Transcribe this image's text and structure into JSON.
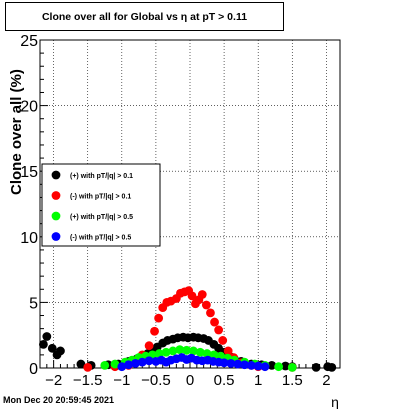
{
  "chart_data": {
    "type": "scatter",
    "title": "Clone  over all for Global vs   η at pT > 0.11",
    "xlabel": "η",
    "ylabel": "Clone  over all (%)",
    "xlim": [
      -2.2,
      2.2
    ],
    "ylim": [
      0,
      25
    ],
    "x_ticks": [
      -2,
      -1.5,
      -1,
      -0.5,
      0,
      0.5,
      1,
      1.5,
      2
    ],
    "x_tick_labels": [
      "−2",
      "−1.5",
      "−1",
      "−0.5",
      "0",
      "0.5",
      "1",
      "1.5",
      "2"
    ],
    "y_ticks": [
      0,
      5,
      10,
      15,
      20,
      25
    ],
    "y_tick_labels": [
      "0",
      "5",
      "10",
      "15",
      "20",
      "25"
    ],
    "grid": true,
    "legend_position": "left",
    "series": [
      {
        "name": "(+) with pT/|q| > 0.1",
        "color": "#000000",
        "points": [
          [
            -2.15,
            1.8
          ],
          [
            -2.1,
            2.4
          ],
          [
            -2.02,
            1.5
          ],
          [
            -1.95,
            1.0
          ],
          [
            -1.9,
            1.3
          ],
          [
            -1.6,
            0.3
          ],
          [
            -1.45,
            0.2
          ],
          [
            -1.2,
            0.25
          ],
          [
            -1.05,
            0.3
          ],
          [
            -0.9,
            0.5
          ],
          [
            -0.78,
            0.7
          ],
          [
            -0.7,
            0.9
          ],
          [
            -0.62,
            1.1
          ],
          [
            -0.55,
            1.3
          ],
          [
            -0.48,
            1.6
          ],
          [
            -0.4,
            1.9
          ],
          [
            -0.33,
            2.1
          ],
          [
            -0.25,
            2.2
          ],
          [
            -0.18,
            2.3
          ],
          [
            -0.1,
            2.35
          ],
          [
            -0.03,
            2.3
          ],
          [
            0.05,
            2.35
          ],
          [
            0.12,
            2.3
          ],
          [
            0.2,
            2.25
          ],
          [
            0.27,
            2.1
          ],
          [
            0.35,
            1.8
          ],
          [
            0.42,
            1.5
          ],
          [
            0.5,
            1.2
          ],
          [
            0.58,
            0.9
          ],
          [
            0.65,
            0.7
          ],
          [
            0.75,
            0.5
          ],
          [
            0.9,
            0.3
          ],
          [
            1.05,
            0.25
          ],
          [
            1.2,
            0.2
          ],
          [
            1.4,
            0.15
          ],
          [
            1.5,
            0.1
          ],
          [
            1.85,
            0.05
          ],
          [
            2.02,
            0.1
          ],
          [
            2.08,
            0.05
          ]
        ]
      },
      {
        "name": "(-) with pT/|q| > 0.1",
        "color": "#ff0000",
        "points": [
          [
            -1.5,
            0.05
          ],
          [
            -1.1,
            0.1
          ],
          [
            -0.9,
            0.2
          ],
          [
            -0.8,
            0.5
          ],
          [
            -0.7,
            1.0
          ],
          [
            -0.6,
            1.7
          ],
          [
            -0.52,
            2.8
          ],
          [
            -0.46,
            3.8
          ],
          [
            -0.4,
            4.6
          ],
          [
            -0.34,
            5.0
          ],
          [
            -0.28,
            5.1
          ],
          [
            -0.2,
            5.3
          ],
          [
            -0.14,
            5.7
          ],
          [
            -0.08,
            5.8
          ],
          [
            -0.02,
            5.9
          ],
          [
            0.03,
            5.5
          ],
          [
            0.08,
            4.9
          ],
          [
            0.13,
            5.2
          ],
          [
            0.18,
            5.6
          ],
          [
            0.24,
            4.8
          ],
          [
            0.3,
            4.2
          ],
          [
            0.36,
            3.5
          ],
          [
            0.42,
            2.9
          ],
          [
            0.48,
            2.1
          ],
          [
            0.56,
            1.3
          ],
          [
            0.64,
            0.8
          ],
          [
            0.75,
            0.4
          ],
          [
            0.9,
            0.2
          ],
          [
            1.0,
            0.1
          ],
          [
            1.5,
            0.05
          ]
        ]
      },
      {
        "name": "(+) with pT/|q| > 0.5",
        "color": "#00ff00",
        "points": [
          [
            -1.25,
            0.2
          ],
          [
            -1.1,
            0.3
          ],
          [
            -0.95,
            0.45
          ],
          [
            -0.85,
            0.6
          ],
          [
            -0.75,
            0.8
          ],
          [
            -0.65,
            0.9
          ],
          [
            -0.55,
            1.0
          ],
          [
            -0.45,
            1.1
          ],
          [
            -0.35,
            1.2
          ],
          [
            -0.25,
            1.3
          ],
          [
            -0.15,
            1.4
          ],
          [
            -0.05,
            1.35
          ],
          [
            0.05,
            1.3
          ],
          [
            0.15,
            1.2
          ],
          [
            0.25,
            1.1
          ],
          [
            0.35,
            1.0
          ],
          [
            0.45,
            0.9
          ],
          [
            0.55,
            0.75
          ],
          [
            0.65,
            0.6
          ],
          [
            0.8,
            0.45
          ],
          [
            0.95,
            0.3
          ],
          [
            1.1,
            0.2
          ],
          [
            1.3,
            0.1
          ],
          [
            1.5,
            0.05
          ]
        ]
      },
      {
        "name": "(-) with pT/|q| > 0.5",
        "color": "#0000ff",
        "points": [
          [
            -1.0,
            0.1
          ],
          [
            -0.9,
            0.25
          ],
          [
            -0.8,
            0.35
          ],
          [
            -0.7,
            0.45
          ],
          [
            -0.6,
            0.55
          ],
          [
            -0.5,
            0.5
          ],
          [
            -0.42,
            0.6
          ],
          [
            -0.35,
            0.45
          ],
          [
            -0.28,
            0.6
          ],
          [
            -0.2,
            0.7
          ],
          [
            -0.12,
            0.8
          ],
          [
            -0.05,
            0.65
          ],
          [
            0.02,
            0.75
          ],
          [
            0.1,
            0.6
          ],
          [
            0.18,
            0.55
          ],
          [
            0.26,
            0.6
          ],
          [
            0.34,
            0.5
          ],
          [
            0.42,
            0.45
          ],
          [
            0.5,
            0.4
          ],
          [
            0.6,
            0.35
          ],
          [
            0.7,
            0.3
          ],
          [
            0.8,
            0.25
          ],
          [
            0.9,
            0.2
          ],
          [
            1.0,
            0.15
          ],
          [
            1.1,
            0.1
          ]
        ]
      }
    ]
  },
  "footer": {
    "date_stamp": "Mon Dec 20 20:59:45 2021"
  }
}
